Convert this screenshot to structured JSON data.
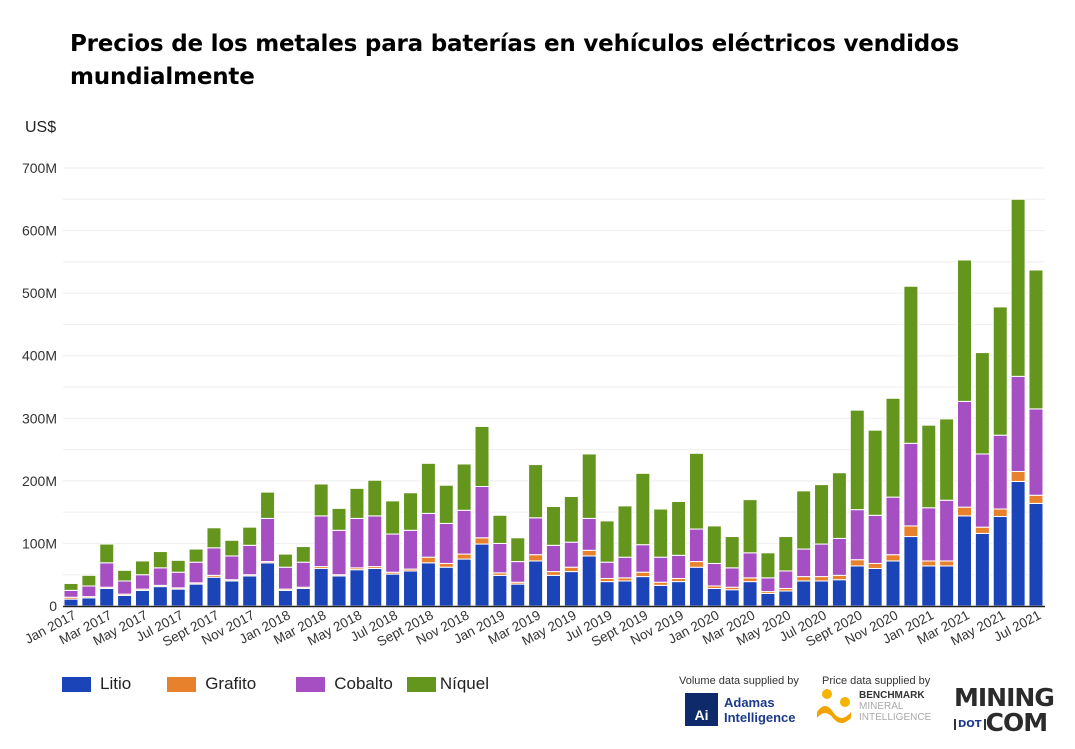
{
  "chart_data": {
    "type": "bar",
    "stacked": true,
    "title": "Precios de los metales para baterías en vehículos eléctricos vendidos mundialmente",
    "ylabel": "US$",
    "ylim": [
      0,
      700
    ],
    "yunit": "M",
    "yticks": [
      "0",
      "100M",
      "200M",
      "300M",
      "400M",
      "500M",
      "600M",
      "700M"
    ],
    "grid": true,
    "legend_position": "bottom-left",
    "categories": [
      "Jan 2017",
      "Feb 2017",
      "Mar 2017",
      "Apr 2017",
      "May 2017",
      "Jun 2017",
      "Jul 2017",
      "Aug 2017",
      "Sept 2017",
      "Oct 2017",
      "Nov 2017",
      "Dec 2017",
      "Jan 2018",
      "Feb 2018",
      "Mar 2018",
      "Apr 2018",
      "May 2018",
      "Jun 2018",
      "Jul 2018",
      "Aug 2018",
      "Sept 2018",
      "Oct 2018",
      "Nov 2018",
      "Dec 2018",
      "Jan 2019",
      "Feb 2019",
      "Mar 2019",
      "Apr 2019",
      "May 2019",
      "Jun 2019",
      "Jul 2019",
      "Aug 2019",
      "Sept 2019",
      "Oct 2019",
      "Nov 2019",
      "Dec 2019",
      "Jan 2020",
      "Feb 2020",
      "Mar 2020",
      "Apr 2020",
      "May 2020",
      "Jun 2020",
      "Jul 2020",
      "Aug 2020",
      "Sept 2020",
      "Oct 2020",
      "Nov 2020",
      "Dec 2020",
      "Jan 2021",
      "Feb 2021",
      "Mar 2021",
      "Apr 2021",
      "May 2021",
      "Jun 2021",
      "Jul 2021"
    ],
    "xtick_labels": [
      "Jan 2017",
      "Mar 2017",
      "May 2017",
      "Jul 2017",
      "Sept 2017",
      "Nov 2017",
      "Jan 2018",
      "Mar 2018",
      "May 2018",
      "Jul 2018",
      "Sept 2018",
      "Nov 2018",
      "Jan 2019",
      "Mar 2019",
      "May 2019",
      "Jul 2019",
      "Sept 2019",
      "Nov 2019",
      "Jan 2020",
      "Mar 2020",
      "May 2020",
      "Jul 2020",
      "Sept 2020",
      "Nov 2020",
      "Jan 2021",
      "Mar 2021",
      "May 2021",
      "Jul 2021"
    ],
    "series": [
      {
        "name": "Litio",
        "color": "#1a44b8",
        "values": [
          11,
          13,
          28,
          17,
          25,
          31,
          27,
          35,
          46,
          40,
          48,
          69,
          25,
          28,
          60,
          48,
          58,
          60,
          51,
          56,
          69,
          62,
          75,
          99,
          49,
          35,
          72,
          49,
          55,
          80,
          39,
          40,
          47,
          33,
          39,
          62,
          28,
          26,
          39,
          20,
          24,
          40,
          40,
          42,
          64,
          60,
          72,
          111,
          64,
          64,
          144,
          116,
          143,
          199,
          164
        ]
      },
      {
        "name": "Grafito",
        "color": "#e8812c",
        "values": [
          3,
          2,
          2,
          2,
          2,
          2,
          2,
          2,
          3,
          2,
          2,
          2,
          2,
          2,
          3,
          2,
          3,
          3,
          3,
          3,
          9,
          6,
          8,
          10,
          4,
          3,
          10,
          6,
          7,
          9,
          5,
          5,
          7,
          5,
          5,
          9,
          4,
          4,
          6,
          3,
          4,
          7,
          7,
          7,
          10,
          8,
          10,
          17,
          8,
          8,
          14,
          10,
          12,
          16,
          13
        ]
      },
      {
        "name": "Cobalto",
        "color": "#a64fc2",
        "values": [
          11,
          17,
          39,
          21,
          23,
          28,
          25,
          33,
          44,
          38,
          47,
          69,
          35,
          40,
          81,
          71,
          79,
          81,
          61,
          62,
          70,
          64,
          70,
          82,
          47,
          33,
          59,
          42,
          40,
          51,
          26,
          33,
          44,
          40,
          37,
          52,
          36,
          31,
          40,
          22,
          28,
          44,
          52,
          59,
          80,
          77,
          92,
          132,
          85,
          97,
          169,
          117,
          118,
          152,
          138
        ]
      },
      {
        "name": "Níquel",
        "color": "#64961e",
        "values": [
          11,
          17,
          30,
          17,
          22,
          26,
          19,
          21,
          32,
          25,
          29,
          42,
          21,
          25,
          51,
          35,
          48,
          57,
          53,
          60,
          80,
          61,
          74,
          96,
          45,
          38,
          85,
          62,
          73,
          103,
          66,
          82,
          114,
          77,
          86,
          121,
          60,
          50,
          85,
          40,
          55,
          93,
          95,
          105,
          159,
          136,
          158,
          251,
          132,
          130,
          226,
          162,
          205,
          283,
          222
        ]
      }
    ]
  },
  "credits": {
    "volume": "Volume data supplied by",
    "price": "Price data supplied by",
    "adamas_logo": "Ai Adamas Intelligence",
    "benchmark_logo": "BENCHMARK MINERAL INTELLIGENCE",
    "mining_logo": "MINING [DOT] COM"
  }
}
